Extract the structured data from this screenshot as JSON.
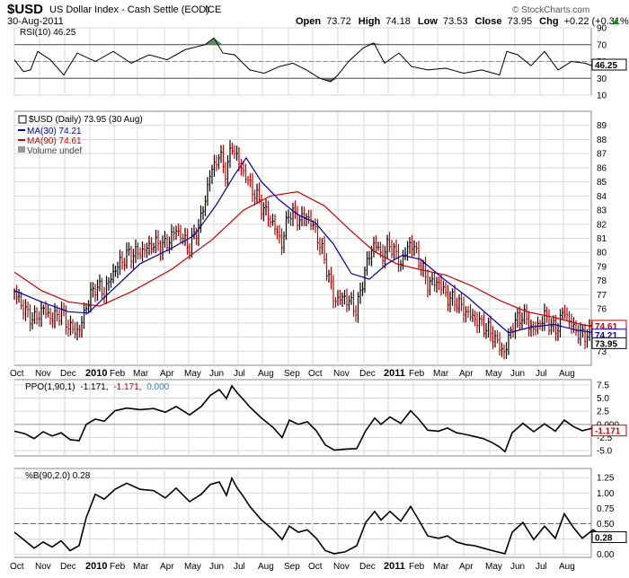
{
  "header": {
    "symbol": "$USD",
    "name": "US Dollar Index - Cash Settle (EOD)",
    "exchange": "ICE",
    "date": "30-Aug-2011",
    "source": "© StockCharts.com",
    "open_label": "Open",
    "open": "73.72",
    "high_label": "High",
    "high": "74.18",
    "low_label": "Low",
    "low": "73.53",
    "close_label": "Close",
    "close": "73.95",
    "chg_label": "Chg",
    "chg": "+0.22 (+0.31%)",
    "up_arrow": "▲"
  },
  "colors": {
    "price_up": "#000000",
    "price_down": "#cc0000",
    "ma30": "#0000aa",
    "ma90": "#cc0000",
    "ppo_signal": "#1e90c8",
    "rsi_overbought_fill": "#4a7a4a",
    "rsi_oversold_fill": "#8b5040",
    "panel_border": "#888888"
  },
  "x_axis": {
    "labels": [
      "Oct",
      "Nov",
      "Dec",
      "2010",
      "Feb",
      "Mar",
      "Apr",
      "May",
      "Jun",
      "Jul",
      "Aug",
      "Sep",
      "Oct",
      "Nov",
      "Dec",
      "2011",
      "Feb",
      "Mar",
      "Apr",
      "May",
      "Jun",
      "Jul",
      "Aug"
    ],
    "bold": [
      "2010",
      "2011"
    ]
  },
  "chart_data": [
    {
      "type": "line",
      "panel": "rsi",
      "legend": "RSI(10) 46.25",
      "series": [
        {
          "name": "RSI(10)",
          "last": 46.25
        }
      ],
      "ylim": [
        10,
        90
      ],
      "yticks": [
        90,
        70,
        50,
        30,
        10
      ],
      "tick_labels": [
        "90",
        "70",
        "50",
        "30",
        "10"
      ],
      "reference_lines": [
        70,
        30
      ],
      "last_value_label": "46.25",
      "points": [
        [
          0,
          52
        ],
        [
          10,
          38
        ],
        [
          18,
          40
        ],
        [
          26,
          62
        ],
        [
          40,
          52
        ],
        [
          55,
          34
        ],
        [
          70,
          60
        ],
        [
          90,
          50
        ],
        [
          110,
          62
        ],
        [
          130,
          48
        ],
        [
          150,
          58
        ],
        [
          170,
          52
        ],
        [
          190,
          64
        ],
        [
          212,
          70
        ],
        [
          222,
          78
        ],
        [
          232,
          60
        ],
        [
          245,
          58
        ],
        [
          262,
          40
        ],
        [
          278,
          36
        ],
        [
          295,
          44
        ],
        [
          310,
          48
        ],
        [
          325,
          40
        ],
        [
          340,
          30
        ],
        [
          352,
          26
        ],
        [
          360,
          34
        ],
        [
          372,
          50
        ],
        [
          388,
          66
        ],
        [
          400,
          72
        ],
        [
          412,
          48
        ],
        [
          428,
          60
        ],
        [
          442,
          44
        ],
        [
          460,
          40
        ],
        [
          480,
          42
        ],
        [
          500,
          36
        ],
        [
          520,
          40
        ],
        [
          540,
          34
        ],
        [
          548,
          62
        ],
        [
          560,
          58
        ],
        [
          575,
          45
        ],
        [
          590,
          62
        ],
        [
          605,
          40
        ],
        [
          620,
          50
        ],
        [
          635,
          48
        ],
        [
          650,
          42
        ],
        [
          658,
          46.25
        ]
      ]
    },
    {
      "type": "line",
      "panel": "price",
      "legend": {
        "price": "$USD (Daily) 73.95 (30 Aug)",
        "ma30": "MA(30) 74.21",
        "ma90": "MA(90) 74.61",
        "volume": "Volume undef"
      },
      "series": [
        {
          "name": "$USD (Daily)",
          "last": 73.95
        },
        {
          "name": "MA(30)",
          "last": 74.21
        },
        {
          "name": "MA(90)",
          "last": 74.61
        }
      ],
      "ylim": [
        72,
        90
      ],
      "yticks": [
        89,
        88,
        87,
        86,
        85,
        84,
        83,
        82,
        81,
        80,
        79,
        78,
        77,
        76,
        75,
        74,
        73
      ],
      "tick_labels": [
        "89",
        "88",
        "87",
        "86",
        "85",
        "84",
        "83",
        "82",
        "81",
        "80",
        "79",
        "78",
        "77",
        "76",
        "75",
        "74",
        "73"
      ],
      "last_value_labels": [
        "74.61",
        "74.21",
        "73.95"
      ],
      "price_points": [
        [
          0,
          77.2
        ],
        [
          12,
          75.8
        ],
        [
          22,
          75.2
        ],
        [
          32,
          76.0
        ],
        [
          42,
          75.3
        ],
        [
          52,
          75.8
        ],
        [
          62,
          74.6
        ],
        [
          72,
          74.4
        ],
        [
          80,
          76.2
        ],
        [
          90,
          77.6
        ],
        [
          100,
          77.2
        ],
        [
          112,
          78.8
        ],
        [
          125,
          79.8
        ],
        [
          140,
          80.0
        ],
        [
          155,
          80.6
        ],
        [
          168,
          80.5
        ],
        [
          180,
          81.6
        ],
        [
          195,
          80.4
        ],
        [
          208,
          82.4
        ],
        [
          218,
          85.6
        ],
        [
          228,
          86.9
        ],
        [
          236,
          85.6
        ],
        [
          242,
          87.7
        ],
        [
          248,
          86.6
        ],
        [
          255,
          85.7
        ],
        [
          262,
          84.8
        ],
        [
          275,
          83.3
        ],
        [
          288,
          82.0
        ],
        [
          298,
          80.6
        ],
        [
          306,
          83.0
        ],
        [
          316,
          82.3
        ],
        [
          326,
          82.6
        ],
        [
          336,
          81.4
        ],
        [
          346,
          79.3
        ],
        [
          356,
          76.6
        ],
        [
          368,
          76.8
        ],
        [
          381,
          75.9
        ],
        [
          391,
          79.0
        ],
        [
          401,
          80.8
        ],
        [
          408,
          79.7
        ],
        [
          418,
          80.6
        ],
        [
          430,
          79.2
        ],
        [
          441,
          80.8
        ],
        [
          450,
          79.5
        ],
        [
          460,
          77.8
        ],
        [
          472,
          77.9
        ],
        [
          482,
          76.8
        ],
        [
          492,
          76.5
        ],
        [
          502,
          75.8
        ],
        [
          512,
          75.3
        ],
        [
          522,
          74.8
        ],
        [
          532,
          74.2
        ],
        [
          540,
          73.3
        ],
        [
          546,
          72.9
        ],
        [
          554,
          74.8
        ],
        [
          566,
          75.6
        ],
        [
          578,
          74.4
        ],
        [
          590,
          75.5
        ],
        [
          602,
          74.4
        ],
        [
          612,
          75.9
        ],
        [
          622,
          74.6
        ],
        [
          632,
          74.1
        ],
        [
          644,
          74.4
        ],
        [
          656,
          73.95
        ]
      ],
      "ma30_points": [
        [
          0,
          77.3
        ],
        [
          30,
          76.5
        ],
        [
          60,
          75.8
        ],
        [
          82,
          75.7
        ],
        [
          110,
          77.4
        ],
        [
          140,
          79.2
        ],
        [
          175,
          80.3
        ],
        [
          200,
          81.2
        ],
        [
          225,
          83.4
        ],
        [
          245,
          85.5
        ],
        [
          258,
          86.7
        ],
        [
          275,
          85.0
        ],
        [
          295,
          83.7
        ],
        [
          315,
          82.7
        ],
        [
          335,
          82.1
        ],
        [
          355,
          80.6
        ],
        [
          375,
          78.5
        ],
        [
          395,
          78.1
        ],
        [
          415,
          79.2
        ],
        [
          432,
          79.8
        ],
        [
          452,
          79.5
        ],
        [
          478,
          78.1
        ],
        [
          505,
          76.8
        ],
        [
          530,
          75.4
        ],
        [
          550,
          74.3
        ],
        [
          575,
          74.7
        ],
        [
          600,
          74.9
        ],
        [
          625,
          74.5
        ],
        [
          656,
          74.21
        ]
      ],
      "ma90_points": [
        [
          0,
          78.6
        ],
        [
          30,
          77.3
        ],
        [
          60,
          76.5
        ],
        [
          95,
          76.2
        ],
        [
          130,
          77.2
        ],
        [
          175,
          78.8
        ],
        [
          220,
          80.9
        ],
        [
          255,
          83.0
        ],
        [
          285,
          84.0
        ],
        [
          315,
          84.3
        ],
        [
          345,
          83.3
        ],
        [
          375,
          81.5
        ],
        [
          400,
          80.1
        ],
        [
          425,
          79.2
        ],
        [
          450,
          78.8
        ],
        [
          480,
          78.4
        ],
        [
          510,
          77.6
        ],
        [
          540,
          76.6
        ],
        [
          570,
          75.8
        ],
        [
          600,
          75.4
        ],
        [
          630,
          74.9
        ],
        [
          656,
          74.61
        ]
      ]
    },
    {
      "type": "line",
      "panel": "ppo",
      "legend": {
        "prefix": "PPO(1,90,1)",
        "value1": "-1.171",
        "value2": "-1.171",
        "value3": "0.000"
      },
      "series": [
        {
          "name": "PPO(1,90,1)",
          "last": -1.171
        },
        {
          "name": "signal",
          "last": -1.171
        },
        {
          "name": "histogram",
          "last": 0.0
        }
      ],
      "ylim": [
        -6,
        8.5
      ],
      "yticks": [
        7.5,
        5.0,
        2.5,
        0.0,
        -2.5,
        -5.0
      ],
      "tick_labels": [
        "7.5",
        "5.0",
        "2.5",
        "0.000",
        "-2.5",
        "-5.0"
      ],
      "last_value_label": "-1.171",
      "points": [
        [
          0,
          -1.3
        ],
        [
          12,
          -1.8
        ],
        [
          22,
          -2.7
        ],
        [
          32,
          -1.4
        ],
        [
          42,
          -2.2
        ],
        [
          52,
          -1.6
        ],
        [
          62,
          -2.9
        ],
        [
          72,
          -3.1
        ],
        [
          80,
          0.0
        ],
        [
          90,
          1.0
        ],
        [
          100,
          0.6
        ],
        [
          112,
          2.6
        ],
        [
          125,
          3.1
        ],
        [
          140,
          2.8
        ],
        [
          155,
          3.0
        ],
        [
          168,
          2.3
        ],
        [
          180,
          3.4
        ],
        [
          195,
          1.8
        ],
        [
          208,
          3.4
        ],
        [
          218,
          5.5
        ],
        [
          228,
          6.6
        ],
        [
          236,
          4.9
        ],
        [
          242,
          7.3
        ],
        [
          248,
          6.0
        ],
        [
          255,
          4.7
        ],
        [
          262,
          3.3
        ],
        [
          275,
          1.2
        ],
        [
          288,
          -0.6
        ],
        [
          298,
          -2.5
        ],
        [
          306,
          0.8
        ],
        [
          316,
          0.0
        ],
        [
          326,
          0.5
        ],
        [
          336,
          -1.2
        ],
        [
          346,
          -3.9
        ],
        [
          356,
          -4.9
        ],
        [
          368,
          -4.7
        ],
        [
          381,
          -4.6
        ],
        [
          391,
          -1.2
        ],
        [
          401,
          1.2
        ],
        [
          408,
          0.0
        ],
        [
          418,
          1.4
        ],
        [
          430,
          0.2
        ],
        [
          441,
          2.6
        ],
        [
          450,
          1.0
        ],
        [
          460,
          -1.1
        ],
        [
          472,
          -1.3
        ],
        [
          482,
          -0.7
        ],
        [
          492,
          -1.6
        ],
        [
          502,
          -1.9
        ],
        [
          512,
          -2.3
        ],
        [
          522,
          -2.7
        ],
        [
          532,
          -3.5
        ],
        [
          540,
          -4.3
        ],
        [
          546,
          -5.2
        ],
        [
          554,
          -1.6
        ],
        [
          566,
          0.2
        ],
        [
          578,
          -1.4
        ],
        [
          590,
          0.1
        ],
        [
          602,
          -1.3
        ],
        [
          612,
          0.8
        ],
        [
          622,
          -0.4
        ],
        [
          632,
          -1.2
        ],
        [
          644,
          -0.7
        ],
        [
          656,
          -1.171
        ]
      ]
    },
    {
      "type": "line",
      "panel": "pctb",
      "legend": "%B(90,2.0) 0.28",
      "series": [
        {
          "name": "%B(90,2.0)",
          "last": 0.28
        }
      ],
      "ylim": [
        -0.05,
        1.4
      ],
      "yticks": [
        1.25,
        1.0,
        0.75,
        0.5,
        0.25,
        0.0
      ],
      "tick_labels": [
        "1.25",
        "1.00",
        "0.75",
        "0.50",
        "0.25",
        "0.00"
      ],
      "reference_lines": [
        0.5
      ],
      "last_value_label": "0.28",
      "points": [
        [
          0,
          0.36
        ],
        [
          12,
          0.22
        ],
        [
          22,
          0.1
        ],
        [
          32,
          0.2
        ],
        [
          42,
          0.12
        ],
        [
          52,
          0.22
        ],
        [
          62,
          0.06
        ],
        [
          72,
          0.14
        ],
        [
          80,
          0.6
        ],
        [
          90,
          0.98
        ],
        [
          100,
          0.9
        ],
        [
          112,
          1.06
        ],
        [
          125,
          1.16
        ],
        [
          140,
          1.06
        ],
        [
          155,
          1.04
        ],
        [
          168,
          0.92
        ],
        [
          180,
          1.08
        ],
        [
          195,
          0.86
        ],
        [
          208,
          0.98
        ],
        [
          218,
          1.14
        ],
        [
          228,
          1.18
        ],
        [
          236,
          0.96
        ],
        [
          242,
          1.24
        ],
        [
          248,
          1.08
        ],
        [
          255,
          0.94
        ],
        [
          262,
          0.78
        ],
        [
          275,
          0.56
        ],
        [
          288,
          0.4
        ],
        [
          298,
          0.24
        ],
        [
          306,
          0.46
        ],
        [
          316,
          0.36
        ],
        [
          326,
          0.4
        ],
        [
          336,
          0.26
        ],
        [
          346,
          0.06
        ],
        [
          356,
          0.01
        ],
        [
          368,
          0.04
        ],
        [
          381,
          0.14
        ],
        [
          391,
          0.52
        ],
        [
          401,
          0.7
        ],
        [
          408,
          0.56
        ],
        [
          418,
          0.7
        ],
        [
          430,
          0.54
        ],
        [
          441,
          0.78
        ],
        [
          450,
          0.56
        ],
        [
          460,
          0.3
        ],
        [
          472,
          0.26
        ],
        [
          482,
          0.3
        ],
        [
          492,
          0.2
        ],
        [
          502,
          0.16
        ],
        [
          512,
          0.14
        ],
        [
          522,
          0.1
        ],
        [
          532,
          0.06
        ],
        [
          540,
          0.03
        ],
        [
          546,
          0.01
        ],
        [
          554,
          0.36
        ],
        [
          566,
          0.52
        ],
        [
          578,
          0.24
        ],
        [
          590,
          0.46
        ],
        [
          602,
          0.26
        ],
        [
          612,
          0.66
        ],
        [
          622,
          0.44
        ],
        [
          632,
          0.26
        ],
        [
          644,
          0.4
        ],
        [
          656,
          0.28
        ]
      ]
    }
  ]
}
